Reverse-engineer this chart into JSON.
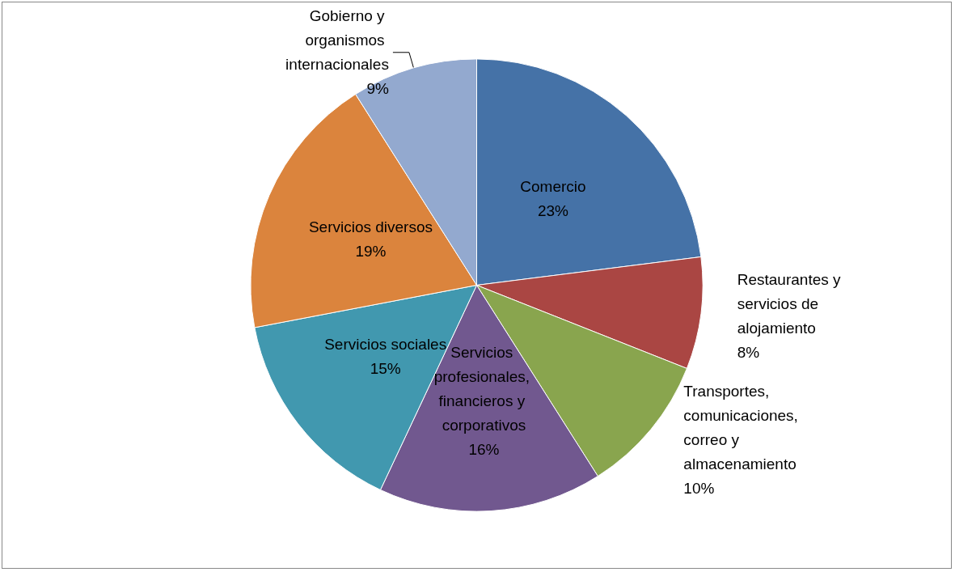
{
  "chart_data": {
    "type": "pie",
    "categories": [
      "Comercio",
      "Restaurantes y servicios de alojamiento",
      "Transportes, comunicaciones, correo y almacenamiento",
      "Servicios profesionales, financieros y corporativos",
      "Servicios sociales",
      "Servicios diversos",
      "Gobierno y organismos internacionales"
    ],
    "values": [
      23,
      8,
      10,
      16,
      15,
      19,
      9
    ],
    "colors": [
      "#4572a7",
      "#aa4643",
      "#89a54e",
      "#71588f",
      "#4198af",
      "#db843d",
      "#93a9cf"
    ],
    "value_labels": [
      "23%",
      "8%",
      "10%",
      "16%",
      "15%",
      "19%",
      "9%"
    ],
    "legend": false
  }
}
